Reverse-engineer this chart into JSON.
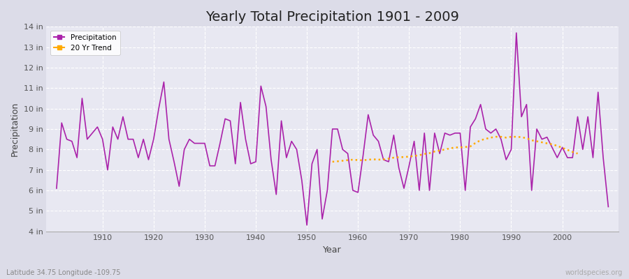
{
  "title": "Yearly Total Precipitation 1901 - 2009",
  "xlabel": "Year",
  "ylabel": "Precipitation",
  "subtitle": "Latitude 34.75 Longitude -109.75",
  "watermark": "worldspecies.org",
  "bg_color": "#dcdce8",
  "plot_bg_color": "#e8e8f2",
  "precip_color": "#aa22aa",
  "trend_color": "#ffaa00",
  "ylim": [
    4,
    14
  ],
  "xlim": [
    1899,
    2011
  ],
  "yticks": [
    4,
    5,
    6,
    7,
    8,
    9,
    10,
    11,
    12,
    13,
    14
  ],
  "ytick_labels": [
    "4 in",
    "5 in",
    "6 in",
    "7 in",
    "8 in",
    "9 in",
    "10 in",
    "11 in",
    "12 in",
    "13 in",
    "14 in"
  ],
  "xtick_positions": [
    1910,
    1920,
    1930,
    1940,
    1950,
    1960,
    1970,
    1980,
    1990,
    2000
  ],
  "years": [
    1901,
    1902,
    1903,
    1904,
    1905,
    1906,
    1907,
    1908,
    1909,
    1910,
    1911,
    1912,
    1913,
    1914,
    1915,
    1916,
    1917,
    1918,
    1919,
    1920,
    1921,
    1922,
    1923,
    1924,
    1925,
    1926,
    1927,
    1928,
    1929,
    1930,
    1931,
    1932,
    1933,
    1934,
    1935,
    1936,
    1937,
    1938,
    1939,
    1940,
    1941,
    1942,
    1943,
    1944,
    1945,
    1946,
    1947,
    1948,
    1949,
    1950,
    1951,
    1952,
    1953,
    1954,
    1955,
    1956,
    1957,
    1958,
    1959,
    1960,
    1961,
    1962,
    1963,
    1964,
    1965,
    1966,
    1967,
    1968,
    1969,
    1970,
    1971,
    1972,
    1973,
    1974,
    1975,
    1976,
    1977,
    1978,
    1979,
    1980,
    1981,
    1982,
    1983,
    1984,
    1985,
    1986,
    1987,
    1988,
    1989,
    1990,
    1991,
    1992,
    1993,
    1994,
    1995,
    1996,
    1997,
    1998,
    1999,
    2000,
    2001,
    2002,
    2003,
    2004,
    2005,
    2006,
    2007,
    2008,
    2009
  ],
  "precip": [
    6.1,
    9.3,
    8.5,
    8.4,
    7.6,
    10.5,
    8.5,
    8.8,
    9.1,
    8.5,
    7.0,
    9.1,
    8.5,
    9.6,
    8.5,
    8.5,
    7.6,
    8.5,
    7.5,
    8.5,
    10.0,
    11.3,
    8.5,
    7.4,
    6.2,
    8.0,
    8.5,
    8.3,
    8.3,
    8.3,
    7.2,
    7.2,
    8.3,
    9.5,
    9.4,
    7.3,
    10.3,
    8.5,
    7.3,
    7.4,
    11.1,
    10.1,
    7.5,
    5.8,
    9.4,
    7.6,
    8.4,
    8.0,
    6.5,
    4.3,
    7.3,
    8.0,
    4.6,
    6.0,
    9.0,
    9.0,
    8.0,
    7.8,
    6.0,
    5.9,
    7.7,
    9.7,
    8.7,
    8.4,
    7.5,
    7.4,
    8.7,
    7.1,
    6.1,
    7.2,
    8.4,
    6.0,
    8.8,
    6.0,
    8.8,
    7.8,
    8.8,
    8.7,
    8.8,
    8.8,
    6.0,
    9.1,
    9.5,
    10.2,
    9.0,
    8.8,
    9.0,
    8.5,
    7.5,
    8.0,
    13.7,
    9.6,
    10.2,
    6.0,
    9.0,
    8.5,
    8.6,
    8.1,
    7.6,
    8.1,
    7.6,
    7.6,
    9.6,
    8.0,
    9.6,
    7.6,
    10.8,
    7.6,
    5.2
  ],
  "trend_years": [
    1955,
    1956,
    1957,
    1958,
    1959,
    1960,
    1961,
    1962,
    1963,
    1964,
    1965,
    1966,
    1967,
    1968,
    1969,
    1970,
    1971,
    1972,
    1973,
    1974,
    1975,
    1976,
    1977,
    1978,
    1979,
    1980,
    1981,
    1982,
    1983,
    1984,
    1985,
    1986,
    1987,
    1988,
    1989,
    1990,
    1991,
    1992,
    1993,
    1994,
    1995,
    1996,
    1997,
    1998,
    1999,
    2000,
    2001,
    2002,
    2003
  ],
  "trend_vals": [
    7.4,
    7.42,
    7.45,
    7.48,
    7.5,
    7.48,
    7.47,
    7.5,
    7.52,
    7.5,
    7.52,
    7.55,
    7.6,
    7.62,
    7.63,
    7.65,
    7.68,
    7.72,
    7.78,
    7.82,
    7.9,
    7.95,
    8.0,
    8.05,
    8.1,
    8.1,
    8.12,
    8.15,
    8.32,
    8.45,
    8.52,
    8.58,
    8.62,
    8.62,
    8.58,
    8.62,
    8.62,
    8.6,
    8.55,
    8.45,
    8.4,
    8.35,
    8.3,
    8.25,
    8.18,
    8.08,
    7.98,
    7.88,
    7.8
  ],
  "title_fontsize": 14,
  "label_fontsize": 9,
  "tick_fontsize": 8
}
